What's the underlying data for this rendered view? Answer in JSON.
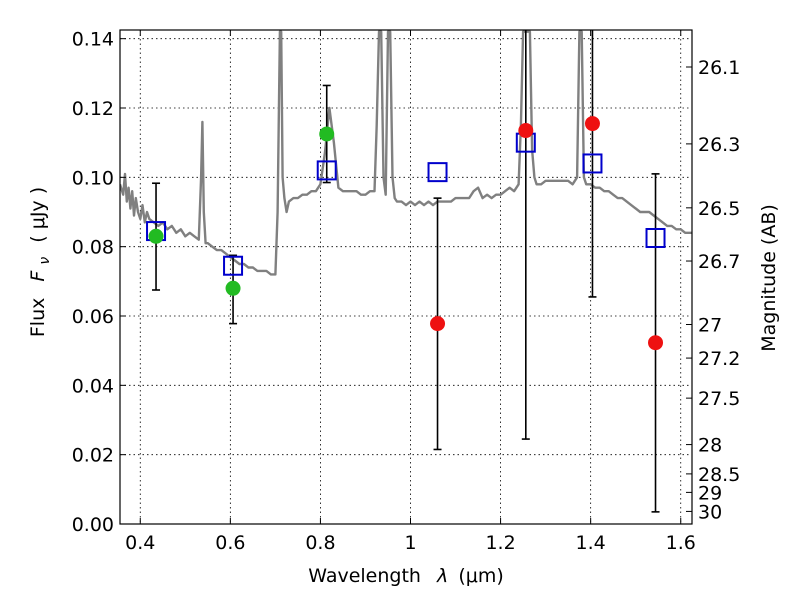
{
  "chart_data": {
    "type": "scatter",
    "xlabel_prefix": "Wavelength",
    "xlabel_symbol": "λ",
    "xlabel_unit": "(μm)",
    "ylabel_prefix": "Flux",
    "ylabel_symbol": "F",
    "ylabel_subscript": "ν",
    "ylabel_unit": "( μJy )",
    "y2label": "Magnitude (AB)",
    "xlim": [
      0.355,
      1.625
    ],
    "ylim": [
      0.0,
      0.1425
    ],
    "x_ticks": [
      0.4,
      0.6,
      0.8,
      1.0,
      1.2,
      1.4,
      1.6
    ],
    "x_tick_labels": [
      "0.4",
      "0.6",
      "0.8",
      "1",
      "1.2",
      "1.4",
      "1.6"
    ],
    "y_ticks": [
      0.0,
      0.02,
      0.04,
      0.06,
      0.08,
      0.1,
      0.12,
      0.14
    ],
    "y_tick_labels": [
      "0.00",
      "0.02",
      "0.04",
      "0.06",
      "0.08",
      "0.10",
      "0.12",
      "0.14"
    ],
    "magnitude_ticks": [
      {
        "label": "26.1",
        "mag": 26.1
      },
      {
        "label": "26.3",
        "mag": 26.3
      },
      {
        "label": "26.5",
        "mag": 26.5
      },
      {
        "label": "26.7",
        "mag": 26.7
      },
      {
        "label": "27",
        "mag": 27.0
      },
      {
        "label": "27.2",
        "mag": 27.2
      },
      {
        "label": "27.5",
        "mag": 27.5
      },
      {
        "label": "28",
        "mag": 28.0
      },
      {
        "label": "28.5",
        "mag": 28.5
      },
      {
        "label": "29",
        "mag": 29.0
      },
      {
        "label": "30",
        "mag": 30.0
      }
    ],
    "grid": true,
    "colors": {
      "spectrum": "#808080",
      "model_box": "#0000cc",
      "detection": "#22bb22",
      "upper": "#ee1111",
      "errorbar": "#000000"
    },
    "model_points": [
      {
        "x": 0.435,
        "y": 0.0845
      },
      {
        "x": 0.606,
        "y": 0.0745
      },
      {
        "x": 0.814,
        "y": 0.102
      },
      {
        "x": 1.06,
        "y": 0.1015
      },
      {
        "x": 1.256,
        "y": 0.11
      },
      {
        "x": 1.404,
        "y": 0.104
      },
      {
        "x": 1.544,
        "y": 0.0825
      }
    ],
    "observed_points": [
      {
        "x": 0.435,
        "y": 0.083,
        "yerr_low": 0.0675,
        "yerr_high": 0.0983,
        "kind": "detection"
      },
      {
        "x": 0.606,
        "y": 0.068,
        "yerr_low": 0.0578,
        "yerr_high": 0.0775,
        "kind": "detection"
      },
      {
        "x": 0.814,
        "y": 0.1125,
        "yerr_low": 0.0985,
        "yerr_high": 0.1265,
        "kind": "detection"
      },
      {
        "x": 1.06,
        "y": 0.0578,
        "yerr_low": 0.0215,
        "yerr_high": 0.094,
        "kind": "low_significance"
      },
      {
        "x": 1.256,
        "y": 0.1135,
        "yerr_low": 0.0245,
        "yerr_high": 0.1425,
        "kind": "low_significance"
      },
      {
        "x": 1.404,
        "y": 0.1155,
        "yerr_low": 0.0655,
        "yerr_high": 0.1425,
        "kind": "low_significance"
      },
      {
        "x": 1.544,
        "y": 0.0523,
        "yerr_low": 0.0035,
        "yerr_high": 0.101,
        "kind": "low_significance"
      }
    ],
    "spectrum": {
      "x": [
        0.355,
        0.362,
        0.366,
        0.37,
        0.374,
        0.378,
        0.382,
        0.386,
        0.39,
        0.395,
        0.4,
        0.405,
        0.41,
        0.415,
        0.42,
        0.43,
        0.44,
        0.45,
        0.46,
        0.47,
        0.48,
        0.49,
        0.5,
        0.51,
        0.52,
        0.53,
        0.535,
        0.538,
        0.541,
        0.545,
        0.55,
        0.56,
        0.57,
        0.58,
        0.59,
        0.6,
        0.61,
        0.62,
        0.63,
        0.64,
        0.65,
        0.66,
        0.67,
        0.68,
        0.69,
        0.7,
        0.705,
        0.71,
        0.713,
        0.716,
        0.72,
        0.725,
        0.73,
        0.74,
        0.75,
        0.76,
        0.77,
        0.78,
        0.79,
        0.8,
        0.81,
        0.82,
        0.83,
        0.84,
        0.85,
        0.86,
        0.87,
        0.88,
        0.89,
        0.9,
        0.91,
        0.92,
        0.925,
        0.93,
        0.935,
        0.94,
        0.945,
        0.95,
        0.955,
        0.96,
        0.965,
        0.97,
        0.98,
        0.99,
        1.0,
        1.01,
        1.02,
        1.03,
        1.04,
        1.05,
        1.06,
        1.07,
        1.08,
        1.09,
        1.1,
        1.11,
        1.12,
        1.13,
        1.14,
        1.15,
        1.16,
        1.17,
        1.18,
        1.19,
        1.2,
        1.21,
        1.22,
        1.23,
        1.24,
        1.245,
        1.25,
        1.255,
        1.26,
        1.265,
        1.27,
        1.275,
        1.28,
        1.29,
        1.3,
        1.31,
        1.32,
        1.33,
        1.34,
        1.35,
        1.36,
        1.37,
        1.375,
        1.38,
        1.385,
        1.39,
        1.4,
        1.41,
        1.42,
        1.43,
        1.44,
        1.45,
        1.46,
        1.47,
        1.48,
        1.49,
        1.5,
        1.51,
        1.52,
        1.53,
        1.54,
        1.55,
        1.56,
        1.57,
        1.58,
        1.59,
        1.6,
        1.61,
        1.625
      ],
      "y": [
        0.098,
        0.095,
        0.101,
        0.093,
        0.097,
        0.091,
        0.096,
        0.089,
        0.094,
        0.09,
        0.088,
        0.092,
        0.087,
        0.09,
        0.088,
        0.087,
        0.086,
        0.087,
        0.085,
        0.086,
        0.084,
        0.085,
        0.083,
        0.084,
        0.083,
        0.082,
        0.1,
        0.116,
        0.09,
        0.081,
        0.081,
        0.08,
        0.079,
        0.079,
        0.078,
        0.077,
        0.076,
        0.075,
        0.075,
        0.074,
        0.074,
        0.073,
        0.073,
        0.073,
        0.072,
        0.072,
        0.09,
        0.142,
        0.142,
        0.1,
        0.094,
        0.09,
        0.093,
        0.094,
        0.094,
        0.095,
        0.095,
        0.096,
        0.096,
        0.098,
        0.107,
        0.12,
        0.11,
        0.097,
        0.096,
        0.096,
        0.096,
        0.096,
        0.095,
        0.095,
        0.096,
        0.096,
        0.115,
        0.142,
        0.142,
        0.1,
        0.095,
        0.142,
        0.142,
        0.1,
        0.094,
        0.093,
        0.093,
        0.092,
        0.093,
        0.092,
        0.093,
        0.092,
        0.093,
        0.092,
        0.093,
        0.093,
        0.093,
        0.093,
        0.094,
        0.094,
        0.094,
        0.094,
        0.096,
        0.097,
        0.094,
        0.095,
        0.094,
        0.095,
        0.095,
        0.096,
        0.097,
        0.096,
        0.098,
        0.115,
        0.142,
        0.142,
        0.142,
        0.142,
        0.108,
        0.1,
        0.098,
        0.098,
        0.099,
        0.099,
        0.099,
        0.099,
        0.099,
        0.099,
        0.098,
        0.1,
        0.142,
        0.142,
        0.1,
        0.098,
        0.098,
        0.097,
        0.097,
        0.096,
        0.096,
        0.095,
        0.094,
        0.094,
        0.093,
        0.092,
        0.091,
        0.09,
        0.09,
        0.09,
        0.089,
        0.088,
        0.087,
        0.086,
        0.086,
        0.085,
        0.085,
        0.084,
        0.084
      ]
    }
  }
}
